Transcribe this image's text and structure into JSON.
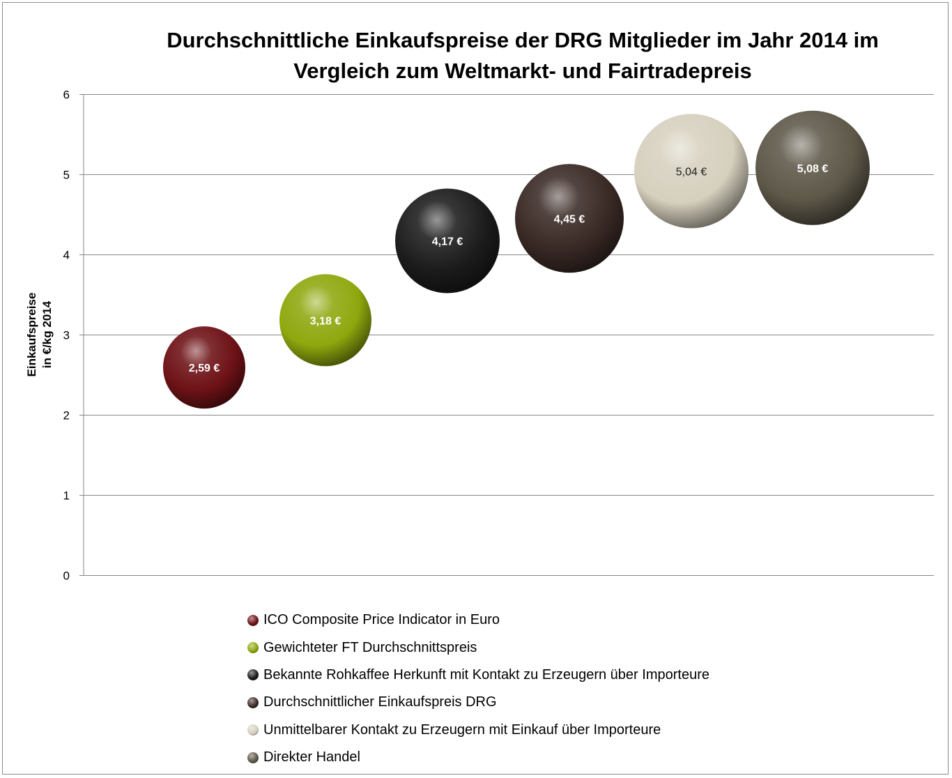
{
  "chart_data": {
    "type": "bubble",
    "title_line1": "Durchschnittliche Einkaufspreise der DRG Mitglieder im Jahr 2014 im",
    "title_line2": "Vergleich zum Weltmarkt- und Fairtradepreis",
    "ylabel_line1": "Einkaufspreise",
    "ylabel_line2": "in €/kg 2014",
    "xlabel": "",
    "ylim": [
      0,
      6
    ],
    "yticks": [
      "0",
      "1",
      "2",
      "3",
      "4",
      "5",
      "6"
    ],
    "grid": true,
    "legend_position": "bottom",
    "series": [
      {
        "name": "ICO Composite Price Indicator in Euro",
        "x": 1,
        "value": 2.59,
        "label": "2,59 €",
        "color": "#6e1216",
        "label_color": "#ffffff"
      },
      {
        "name": "Gewichteter FT Durchschnittspreis",
        "x": 2,
        "value": 3.18,
        "label": "3,18 €",
        "color": "#8fa80e",
        "label_color": "#ffffff"
      },
      {
        "name": "Bekannte Rohkaffee Herkunft mit Kontakt zu Erzeugern über Importeure",
        "x": 3,
        "value": 4.17,
        "label": "4,17 €",
        "color": "#1c1c1c",
        "label_color": "#ffffff"
      },
      {
        "name": "Durchschnittlicher Einkaufspreis DRG",
        "x": 4,
        "value": 4.45,
        "label": "4,45 €",
        "color": "#3a2a26",
        "label_color": "#ffffff"
      },
      {
        "name": "Unmittelbarer Kontakt zu Erzeugern mit Einkauf über Importeure",
        "x": 5,
        "value": 5.04,
        "label": "5,04 €",
        "color": "#d6d0be",
        "label_color": "#222222"
      },
      {
        "name": "Direkter Handel",
        "x": 6,
        "value": 5.08,
        "label": "5,08 €",
        "color": "#5e5849",
        "label_color": "#ffffff"
      }
    ]
  }
}
